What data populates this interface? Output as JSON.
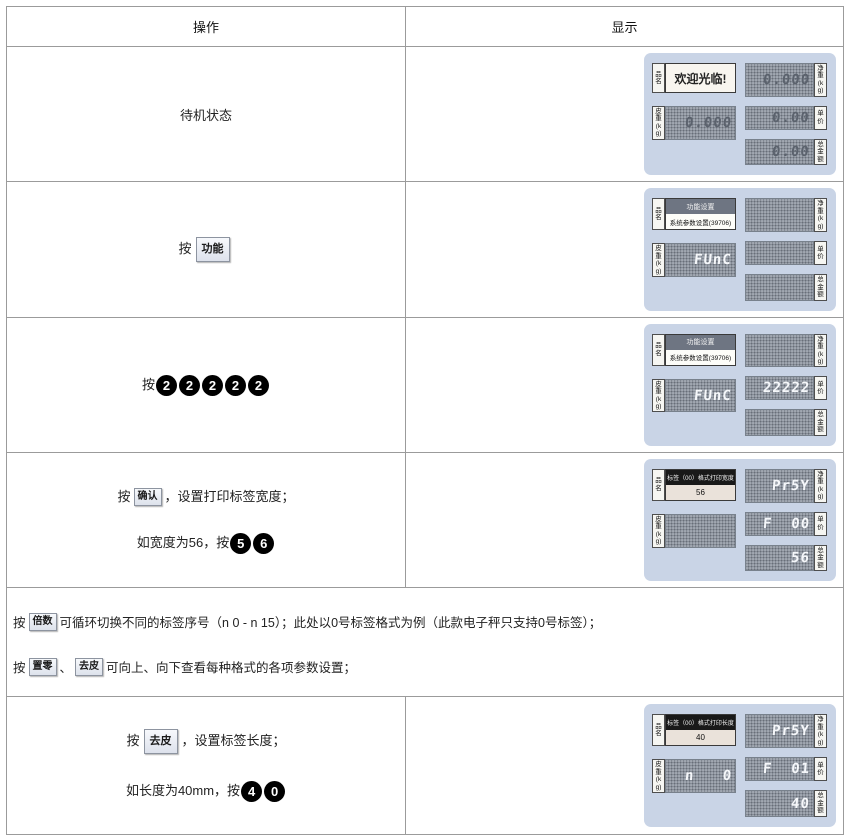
{
  "colors": {
    "panel-bg": "#c9d4e6",
    "screen-bg": "#9aa1ab",
    "digit-lit": "#f5f7fa",
    "digit-dark": "#5b626d",
    "key-black": "#000000",
    "border-gray": "#9b9b9b"
  },
  "table": {
    "col_op": "操作",
    "col_disp": "显示"
  },
  "labels": {
    "name": "品名",
    "tare": "皮重(kg)",
    "net": "净重(kg)",
    "price": "单价",
    "total": "总金额"
  },
  "rows": {
    "standby": {
      "label": "待机状态"
    },
    "func": {
      "prefix": "按",
      "key": "功能"
    },
    "digits2": {
      "prefix": "按",
      "keys": [
        "2",
        "2",
        "2",
        "2",
        "2"
      ]
    },
    "confirm": {
      "line1_prefix": "按",
      "key": "确认",
      "line1_suffix": "，设置打印标签宽度；",
      "line2_prefix": "如宽度为56，按",
      "keys": [
        "5",
        "6"
      ]
    },
    "note": {
      "l1_prefix": "按",
      "l1_key": "倍数",
      "l1_text": "可循环切换不同的标签序号（n 0 - n 15）；此处以0号标签格式为例（此款电子秤只支持0号标签）；",
      "l2_prefix": "按",
      "l2_key1": "置零",
      "l2_sep": "、",
      "l2_key2": "去皮",
      "l2_text": "可向上、向下查看每种格式的各项参数设置；"
    },
    "tare": {
      "line1_prefix": "按",
      "key": "去皮",
      "line1_suffix": "，设置标签长度；",
      "line2_prefix": "如长度为40mm，按",
      "keys": [
        "4",
        "0"
      ]
    }
  },
  "panels": {
    "p1": {
      "name_display": "欢迎光临!",
      "tare_display": "0.000",
      "net_display": "0.000",
      "price_display": "0.00",
      "total_display": "0.00"
    },
    "p2": {
      "name_line1": "功能设置",
      "name_line2": "系统参数设置(39706)",
      "tare_display": "FUnC",
      "net_display": "",
      "price_display": "",
      "total_display": ""
    },
    "p3": {
      "name_line1": "功能设置",
      "name_line2": "系统参数设置(39706)",
      "tare_display": "FUnC",
      "net_display": "",
      "price_display": "22222",
      "total_display": ""
    },
    "p4": {
      "name_line1": "标签（00）格式打印宽度",
      "name_line2": "56",
      "tare_display": "",
      "net_display": "Pr5Y",
      "price_display": "F  00",
      "total_display": "56"
    },
    "p5": {
      "name_line1": "标签（00）格式打印长度",
      "name_line2": "40",
      "tare_display": "n   0",
      "net_display": "Pr5Y",
      "price_display": "F  01",
      "total_display": "40"
    }
  }
}
